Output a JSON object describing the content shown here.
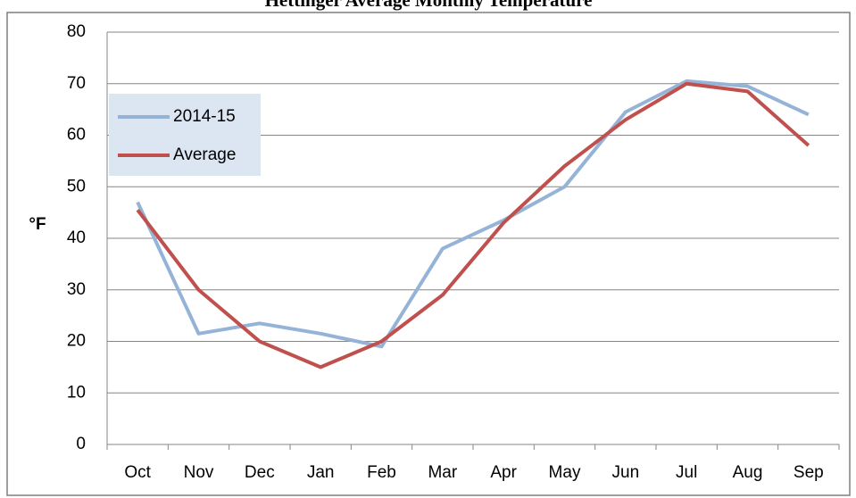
{
  "chart_data": {
    "type": "line",
    "title": "Hettinger Average Monthly Temperature",
    "y_label": "°F",
    "categories": [
      "Oct",
      "Nov",
      "Dec",
      "Jan",
      "Feb",
      "Mar",
      "Apr",
      "May",
      "Jun",
      "Jul",
      "Aug",
      "Sep"
    ],
    "series": [
      {
        "name": "2014-15",
        "color": "#95b3d7",
        "values": [
          47,
          21.5,
          23.5,
          21.5,
          19,
          38,
          43.5,
          50,
          64.5,
          70.5,
          69.5,
          64
        ]
      },
      {
        "name": "Average",
        "color": "#c0504d",
        "values": [
          45.5,
          30,
          20,
          15,
          20,
          29,
          43,
          54,
          63,
          70,
          68.5,
          58
        ]
      }
    ],
    "ylim": [
      0,
      80
    ],
    "yticks": [
      0,
      10,
      20,
      30,
      40,
      50,
      60,
      70,
      80
    ],
    "grid": true,
    "legend": "upper left"
  }
}
